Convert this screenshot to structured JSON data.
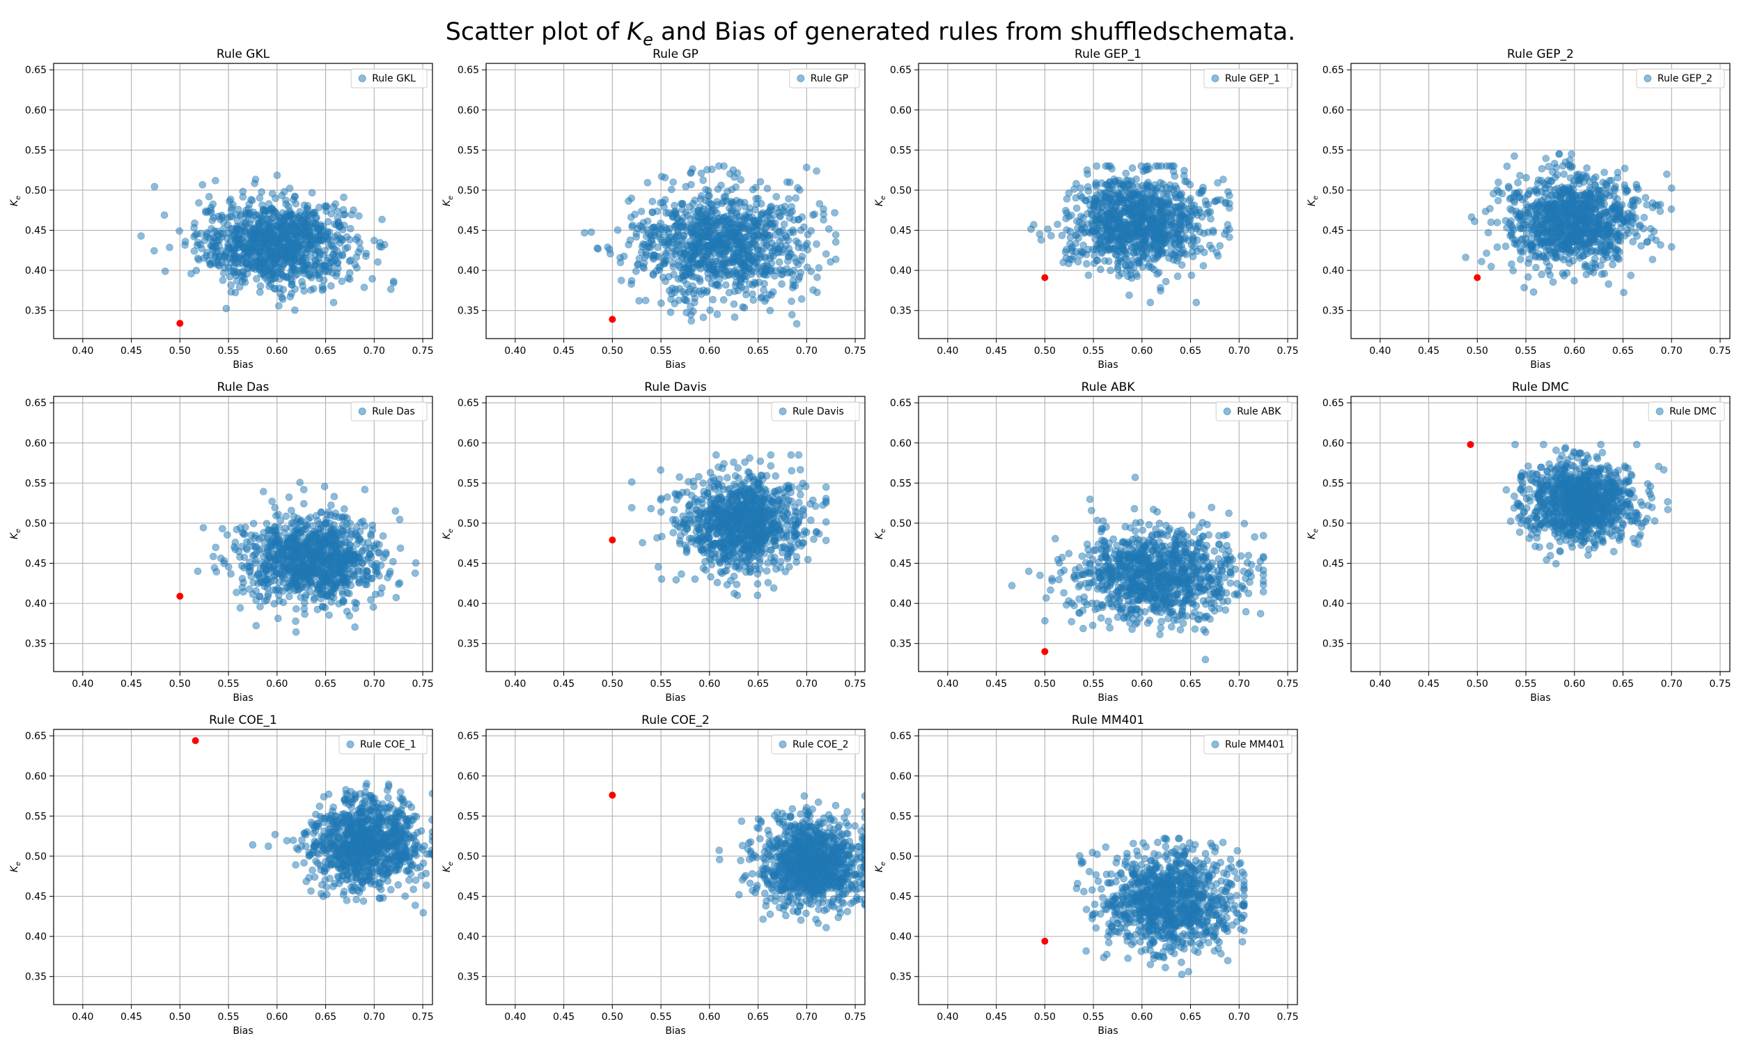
{
  "suptitle": {
    "before": "Scatter plot of ",
    "ke_main": "K",
    "ke_sub": "e",
    "after": " and Bias of generated rules from shuffledschemata."
  },
  "colors": {
    "points": "#1f77b4",
    "highlight": "#ff0000",
    "grid": "#b0b0b0",
    "axes": "#000000"
  },
  "chart_data": [
    {
      "type": "scatter",
      "title": "Rule GKL",
      "legend": "Rule GKL",
      "xlabel": "Bias",
      "ylabel": "K_e",
      "xlim": [
        0.37,
        0.76
      ],
      "ylim": [
        0.315,
        0.658
      ],
      "xticks": [
        "0.40",
        "0.45",
        "0.50",
        "0.55",
        "0.60",
        "0.65",
        "0.70",
        "0.75"
      ],
      "yticks": [
        "0.35",
        "0.40",
        "0.45",
        "0.50",
        "0.55",
        "0.60",
        "0.65"
      ],
      "cloud": {
        "n": 1000,
        "x_mean": 0.6,
        "x_sd": 0.04,
        "y_mean": 0.433,
        "y_sd": 0.027,
        "x_range": [
          0.41,
          0.72
        ],
        "y_range": [
          0.345,
          0.553
        ]
      },
      "highlight": {
        "x": 0.5,
        "y": 0.334
      },
      "grid": true,
      "legend_loc": "upper right"
    },
    {
      "type": "scatter",
      "title": "Rule GP",
      "legend": "Rule GP",
      "xlabel": "Bias",
      "ylabel": "K_e",
      "xlim": [
        0.37,
        0.76
      ],
      "ylim": [
        0.315,
        0.658
      ],
      "xticks": [
        "0.40",
        "0.45",
        "0.50",
        "0.55",
        "0.60",
        "0.65",
        "0.70",
        "0.75"
      ],
      "yticks": [
        "0.35",
        "0.40",
        "0.45",
        "0.50",
        "0.55",
        "0.60",
        "0.65"
      ],
      "cloud": {
        "n": 1000,
        "x_mean": 0.61,
        "x_sd": 0.045,
        "y_mean": 0.435,
        "y_sd": 0.035,
        "x_range": [
          0.46,
          0.73
        ],
        "y_range": [
          0.315,
          0.53
        ]
      },
      "highlight": {
        "x": 0.5,
        "y": 0.339
      },
      "grid": true,
      "legend_loc": "upper right"
    },
    {
      "type": "scatter",
      "title": "Rule GEP_1",
      "legend": "Rule GEP_1",
      "xlabel": "Bias",
      "ylabel": "K_e",
      "xlim": [
        0.37,
        0.76
      ],
      "ylim": [
        0.315,
        0.658
      ],
      "xticks": [
        "0.40",
        "0.45",
        "0.50",
        "0.55",
        "0.60",
        "0.65",
        "0.70",
        "0.75"
      ],
      "yticks": [
        "0.35",
        "0.40",
        "0.45",
        "0.50",
        "0.55",
        "0.60",
        "0.65"
      ],
      "cloud": {
        "n": 1000,
        "x_mean": 0.595,
        "x_sd": 0.035,
        "y_mean": 0.46,
        "y_sd": 0.03,
        "x_range": [
          0.37,
          0.69
        ],
        "y_range": [
          0.36,
          0.53
        ]
      },
      "highlight": {
        "x": 0.5,
        "y": 0.391
      },
      "grid": true,
      "legend_loc": "upper right"
    },
    {
      "type": "scatter",
      "title": "Rule GEP_2",
      "legend": "Rule GEP_2",
      "xlabel": "Bias",
      "ylabel": "K_e",
      "xlim": [
        0.37,
        0.76
      ],
      "ylim": [
        0.315,
        0.658
      ],
      "xticks": [
        "0.40",
        "0.45",
        "0.50",
        "0.55",
        "0.60",
        "0.65",
        "0.70",
        "0.75"
      ],
      "yticks": [
        "0.35",
        "0.40",
        "0.45",
        "0.50",
        "0.55",
        "0.60",
        "0.65"
      ],
      "cloud": {
        "n": 1000,
        "x_mean": 0.597,
        "x_sd": 0.035,
        "y_mean": 0.46,
        "y_sd": 0.03,
        "x_range": [
          0.46,
          0.7
        ],
        "y_range": [
          0.345,
          0.545
        ]
      },
      "highlight": {
        "x": 0.5,
        "y": 0.391
      },
      "grid": true,
      "legend_loc": "upper right"
    },
    {
      "type": "scatter",
      "title": "Rule Das",
      "legend": "Rule Das",
      "xlabel": "Bias",
      "ylabel": "K_e",
      "xlim": [
        0.37,
        0.76
      ],
      "ylim": [
        0.315,
        0.658
      ],
      "xticks": [
        "0.40",
        "0.45",
        "0.50",
        "0.55",
        "0.60",
        "0.65",
        "0.70",
        "0.75"
      ],
      "yticks": [
        "0.35",
        "0.40",
        "0.45",
        "0.50",
        "0.55",
        "0.60",
        "0.65"
      ],
      "cloud": {
        "n": 1000,
        "x_mean": 0.635,
        "x_sd": 0.035,
        "y_mean": 0.455,
        "y_sd": 0.028,
        "x_range": [
          0.505,
          0.745
        ],
        "y_range": [
          0.36,
          0.553
        ]
      },
      "highlight": {
        "x": 0.5,
        "y": 0.409
      },
      "grid": true,
      "legend_loc": "upper right"
    },
    {
      "type": "scatter",
      "title": "Rule Davis",
      "legend": "Rule Davis",
      "xlabel": "Bias",
      "ylabel": "K_e",
      "xlim": [
        0.37,
        0.76
      ],
      "ylim": [
        0.315,
        0.658
      ],
      "xticks": [
        "0.40",
        "0.45",
        "0.50",
        "0.55",
        "0.60",
        "0.65",
        "0.70",
        "0.75"
      ],
      "yticks": [
        "0.35",
        "0.40",
        "0.45",
        "0.50",
        "0.55",
        "0.60",
        "0.65"
      ],
      "cloud": {
        "n": 1000,
        "x_mean": 0.635,
        "x_sd": 0.033,
        "y_mean": 0.5,
        "y_sd": 0.03,
        "x_range": [
          0.52,
          0.72
        ],
        "y_range": [
          0.41,
          0.585
        ]
      },
      "highlight": {
        "x": 0.5,
        "y": 0.479
      },
      "grid": true,
      "legend_loc": "upper right"
    },
    {
      "type": "scatter",
      "title": "Rule ABK",
      "legend": "Rule ABK",
      "xlabel": "Bias",
      "ylabel": "K_e",
      "xlim": [
        0.37,
        0.76
      ],
      "ylim": [
        0.315,
        0.658
      ],
      "xticks": [
        "0.40",
        "0.45",
        "0.50",
        "0.55",
        "0.60",
        "0.65",
        "0.70",
        "0.75"
      ],
      "yticks": [
        "0.35",
        "0.40",
        "0.45",
        "0.50",
        "0.55",
        "0.60",
        "0.65"
      ],
      "cloud": {
        "n": 1000,
        "x_mean": 0.615,
        "x_sd": 0.045,
        "y_mean": 0.435,
        "y_sd": 0.03,
        "x_range": [
          0.45,
          0.725
        ],
        "y_range": [
          0.33,
          0.562
        ]
      },
      "highlight": {
        "x": 0.5,
        "y": 0.34
      },
      "grid": true,
      "legend_loc": "upper right"
    },
    {
      "type": "scatter",
      "title": "Rule DMC",
      "legend": "Rule DMC",
      "xlabel": "Bias",
      "ylabel": "K_e",
      "xlim": [
        0.37,
        0.76
      ],
      "ylim": [
        0.315,
        0.658
      ],
      "xticks": [
        "0.40",
        "0.45",
        "0.50",
        "0.55",
        "0.60",
        "0.65",
        "0.70",
        "0.75"
      ],
      "yticks": [
        "0.35",
        "0.40",
        "0.45",
        "0.50",
        "0.55",
        "0.60",
        "0.65"
      ],
      "cloud": {
        "n": 1000,
        "x_mean": 0.607,
        "x_sd": 0.03,
        "y_mean": 0.525,
        "y_sd": 0.025,
        "x_range": [
          0.52,
          0.7
        ],
        "y_range": [
          0.43,
          0.598
        ]
      },
      "highlight": {
        "x": 0.493,
        "y": 0.598
      },
      "grid": true,
      "legend_loc": "upper right"
    },
    {
      "type": "scatter",
      "title": "Rule COE_1",
      "legend": "Rule COE_1",
      "xlabel": "Bias",
      "ylabel": "K_e",
      "xlim": [
        0.37,
        0.76
      ],
      "ylim": [
        0.315,
        0.658
      ],
      "xticks": [
        "0.40",
        "0.45",
        "0.50",
        "0.55",
        "0.60",
        "0.65",
        "0.70",
        "0.75"
      ],
      "yticks": [
        "0.35",
        "0.40",
        "0.45",
        "0.50",
        "0.55",
        "0.60",
        "0.65"
      ],
      "cloud": {
        "n": 1000,
        "x_mean": 0.69,
        "x_sd": 0.028,
        "y_mean": 0.515,
        "y_sd": 0.028,
        "x_range": [
          0.57,
          0.76
        ],
        "y_range": [
          0.425,
          0.622
        ]
      },
      "highlight": {
        "x": 0.516,
        "y": 0.644
      },
      "grid": true,
      "legend_loc": "upper right"
    },
    {
      "type": "scatter",
      "title": "Rule COE_2",
      "legend": "Rule COE_2",
      "xlabel": "Bias",
      "ylabel": "K_e",
      "xlim": [
        0.37,
        0.76
      ],
      "ylim": [
        0.315,
        0.658
      ],
      "xticks": [
        "0.40",
        "0.45",
        "0.50",
        "0.55",
        "0.60",
        "0.65",
        "0.70",
        "0.75"
      ],
      "yticks": [
        "0.35",
        "0.40",
        "0.45",
        "0.50",
        "0.55",
        "0.60",
        "0.65"
      ],
      "cloud": {
        "n": 1000,
        "x_mean": 0.705,
        "x_sd": 0.028,
        "y_mean": 0.49,
        "y_sd": 0.028,
        "x_range": [
          0.59,
          0.76
        ],
        "y_range": [
          0.4,
          0.575
        ]
      },
      "highlight": {
        "x": 0.5,
        "y": 0.576
      },
      "grid": true,
      "legend_loc": "upper right"
    },
    {
      "type": "scatter",
      "title": "Rule MM401",
      "legend": "Rule MM401",
      "xlabel": "Bias",
      "ylabel": "K_e",
      "xlim": [
        0.37,
        0.76
      ],
      "ylim": [
        0.315,
        0.658
      ],
      "xticks": [
        "0.40",
        "0.45",
        "0.50",
        "0.55",
        "0.60",
        "0.65",
        "0.70",
        "0.75"
      ],
      "yticks": [
        "0.35",
        "0.40",
        "0.45",
        "0.50",
        "0.55",
        "0.60",
        "0.65"
      ],
      "cloud": {
        "n": 1000,
        "x_mean": 0.625,
        "x_sd": 0.035,
        "y_mean": 0.445,
        "y_sd": 0.03,
        "x_range": [
          0.45,
          0.705
        ],
        "y_range": [
          0.315,
          0.522
        ]
      },
      "highlight": {
        "x": 0.5,
        "y": 0.394
      },
      "grid": true,
      "legend_loc": "upper right"
    }
  ]
}
